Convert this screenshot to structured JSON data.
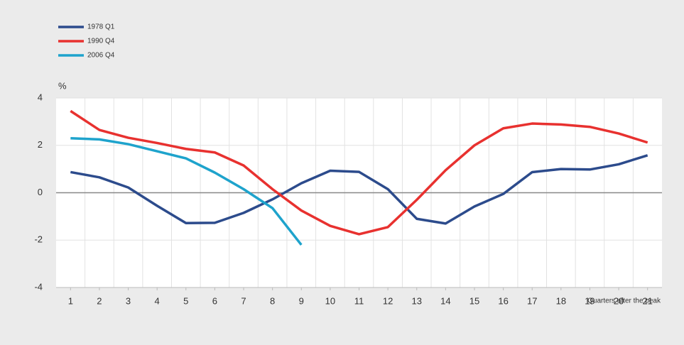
{
  "chart_data": {
    "type": "line",
    "y_label": "%",
    "x_label": "Quarters after the peak",
    "x": [
      1,
      2,
      3,
      4,
      5,
      6,
      7,
      8,
      9,
      10,
      11,
      12,
      13,
      14,
      15,
      16,
      17,
      18,
      19,
      20,
      21
    ],
    "xlim": [
      0.5,
      21.5
    ],
    "xticks": [
      1,
      2,
      3,
      4,
      5,
      6,
      7,
      8,
      9,
      10,
      11,
      12,
      13,
      14,
      15,
      16,
      17,
      18,
      19,
      20,
      21
    ],
    "ylim": [
      -4,
      4
    ],
    "yticks": [
      -4,
      -2,
      0,
      2,
      4
    ],
    "grid": true,
    "legend": "top-left",
    "series": [
      {
        "name": "1978 Q1",
        "color": "#2c4b8c",
        "values": [
          0.87,
          0.65,
          0.22,
          -0.55,
          -1.28,
          -1.27,
          -0.85,
          -0.28,
          0.4,
          0.93,
          0.88,
          0.15,
          -1.1,
          -1.3,
          -0.58,
          -0.05,
          0.87,
          1.0,
          0.98,
          1.2,
          1.58
        ]
      },
      {
        "name": "1990 Q4",
        "color": "#e8312f",
        "values": [
          3.45,
          2.65,
          2.32,
          2.1,
          1.85,
          1.7,
          1.15,
          0.15,
          -0.75,
          -1.4,
          -1.75,
          -1.45,
          -0.3,
          0.95,
          2.0,
          2.72,
          2.92,
          2.88,
          2.78,
          2.5,
          2.12
        ]
      },
      {
        "name": "2006 Q4",
        "color": "#1ea3cc",
        "values": [
          2.3,
          2.25,
          2.05,
          1.75,
          1.45,
          0.85,
          0.15,
          -0.65,
          -2.2,
          null,
          null,
          null,
          null,
          null,
          null,
          null,
          null,
          null,
          null,
          null,
          null
        ]
      }
    ]
  }
}
